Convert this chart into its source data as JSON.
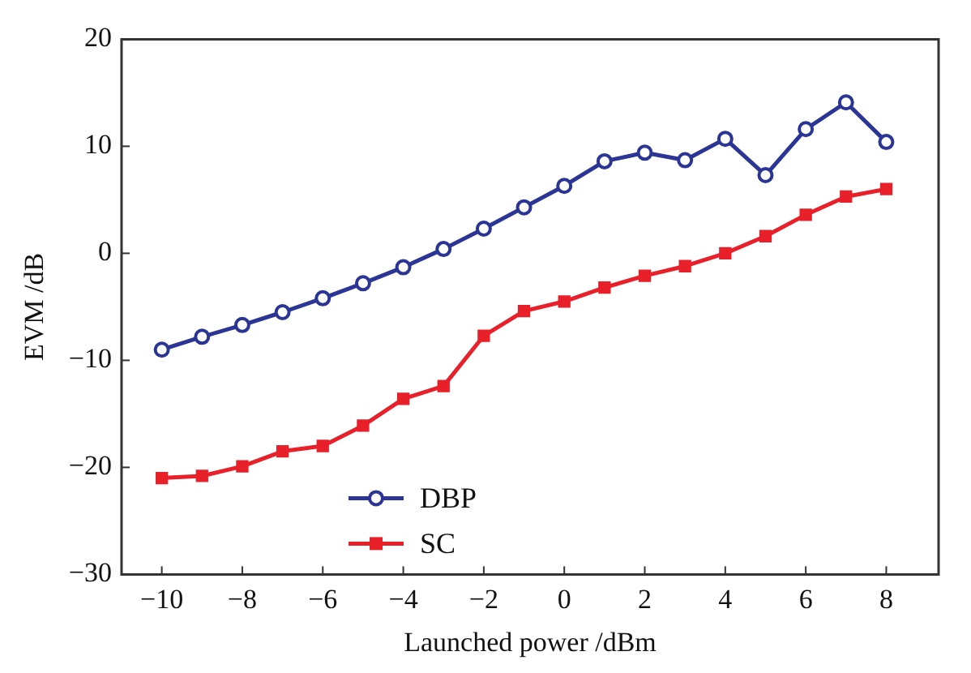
{
  "chart_data": {
    "type": "line",
    "xlabel": "Launched power /dBm",
    "ylabel": "EVM /dB",
    "x": [
      -10,
      -9,
      -8,
      -7,
      -6,
      -5,
      -4,
      -3,
      -2,
      -1,
      0,
      1,
      2,
      3,
      4,
      5,
      6,
      7,
      8
    ],
    "series": [
      {
        "name": "DBP",
        "color": "#2b3595",
        "marker": "circle",
        "values": [
          -9,
          -7.8,
          -6.7,
          -5.5,
          -4.2,
          -2.8,
          -1.3,
          0.4,
          2.3,
          4.3,
          6.3,
          8.6,
          9.4,
          8.7,
          10.7,
          7.3,
          11.6,
          14.1,
          10.4
        ]
      },
      {
        "name": "SC",
        "color": "#e8202a",
        "marker": "square",
        "values": [
          -21,
          -20.8,
          -19.9,
          -18.5,
          -18,
          -16.1,
          -13.6,
          -12.4,
          -7.7,
          -5.4,
          -4.5,
          -3.2,
          -2.1,
          -1.2,
          0,
          1.6,
          3.6,
          5.3,
          6
        ]
      }
    ],
    "xlim": [
      -11,
      9.3
    ],
    "xticks": [
      -10,
      -8,
      -6,
      -4,
      -2,
      0,
      2,
      4,
      6,
      8
    ],
    "ylim": [
      -30,
      20
    ],
    "yticks": [
      -30,
      -20,
      -10,
      0,
      10,
      20
    ],
    "grid": false,
    "legend": "bottom left",
    "line_style": "solid"
  }
}
